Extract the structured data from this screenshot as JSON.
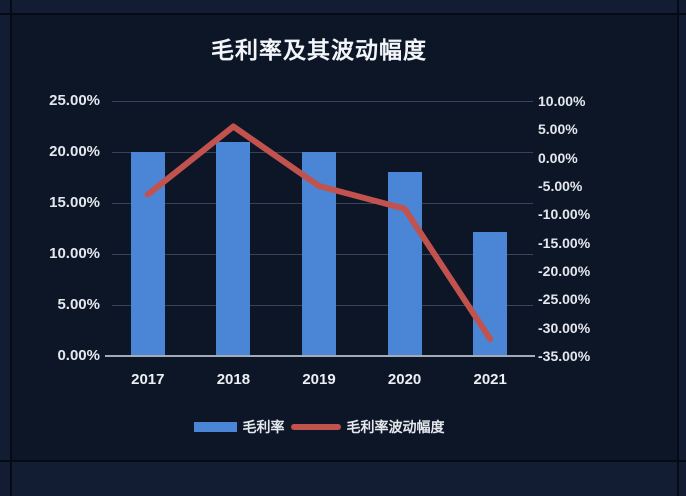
{
  "colors": {
    "sheet_bg": "#121c32",
    "chart_bg": "#0d1626",
    "cell_border": "#050a14",
    "bar": "#4a86d5",
    "line": "#c2524e",
    "text": "#e4e8ee",
    "title_text": "#f2f5f9",
    "gridline": "#39425a",
    "axis_line": "#a4abb8"
  },
  "chart_data": {
    "type": "bar+line combo",
    "title": "毛利率及其波动幅度",
    "categories": [
      "2017",
      "2018",
      "2019",
      "2020",
      "2021"
    ],
    "series": [
      {
        "name": "毛利率",
        "type": "bar",
        "axis": "left",
        "color": "#4a86d5",
        "unit": "%",
        "values": [
          20.0,
          21.0,
          20.0,
          18.0,
          12.2
        ]
      },
      {
        "name": "毛利率波动幅度",
        "type": "line",
        "axis": "right",
        "color": "#c2524e",
        "unit": "%",
        "values": [
          -6.5,
          5.5,
          -5.0,
          -9.0,
          -32.0
        ]
      }
    ],
    "left_axis": {
      "min": 0,
      "max": 25,
      "ticks": [
        "25.00%",
        "20.00%",
        "15.00%",
        "10.00%",
        "5.00%",
        "0.00%"
      ]
    },
    "right_axis": {
      "min": -35,
      "max": 10,
      "ticks": [
        "10.00%",
        "5.00%",
        "0.00%",
        "-5.00%",
        "-10.00%",
        "-15.00%",
        "-20.00%",
        "-25.00%",
        "-30.00%",
        "-35.00%"
      ]
    },
    "grid": true,
    "legend_position": "bottom"
  }
}
